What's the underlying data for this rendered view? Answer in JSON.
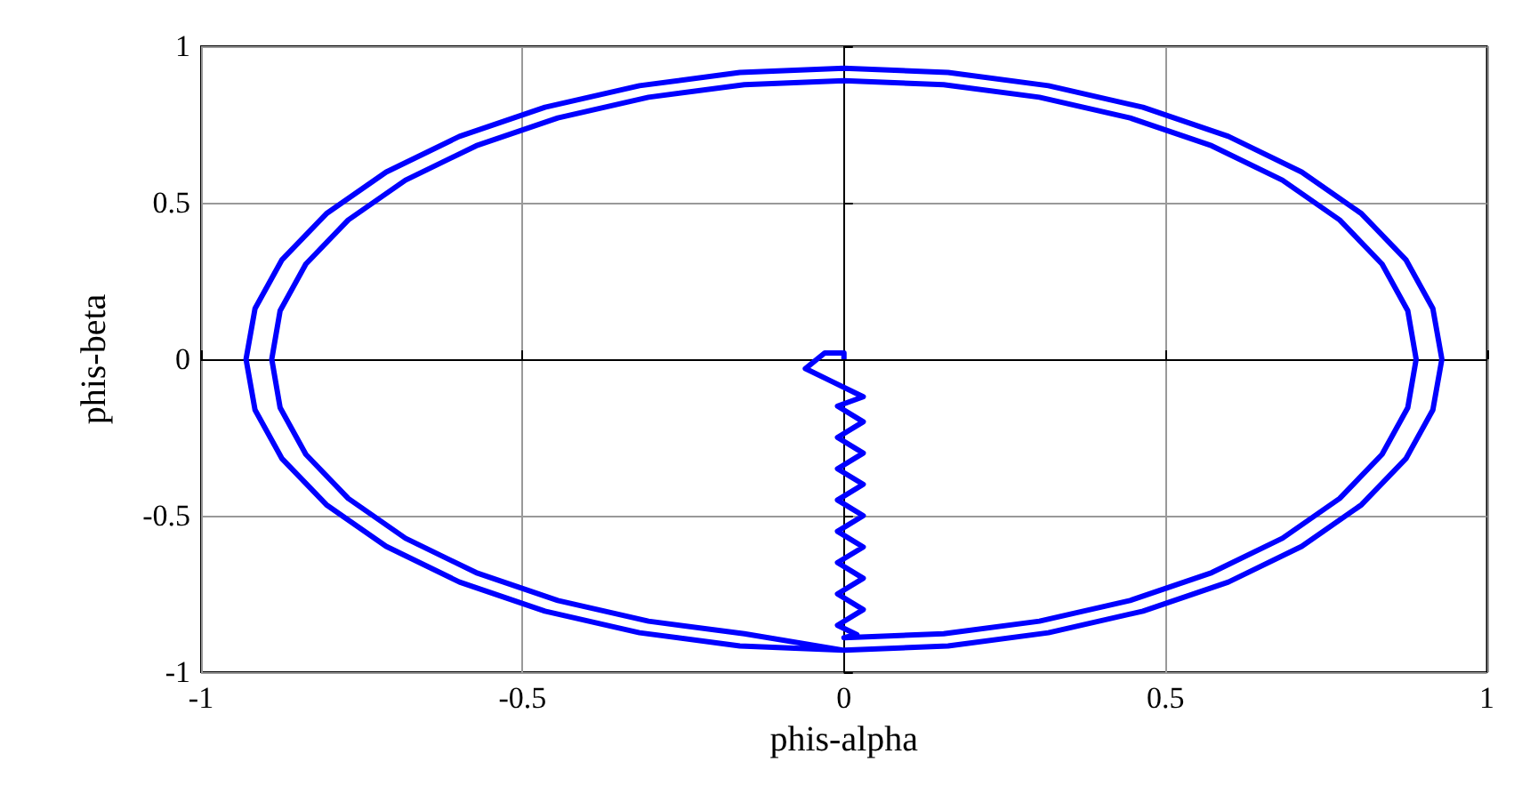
{
  "chart_data": {
    "type": "line",
    "xlabel": "phis-alpha",
    "ylabel": "phis-beta",
    "color": "#0000ff",
    "x": [
      0,
      0,
      -0.03,
      -0.06,
      -0.02,
      0.03,
      -0.01,
      0.03,
      -0.01,
      0.03,
      -0.01,
      0.03,
      -0.01,
      0.03,
      -0.01,
      0.03,
      -0.01,
      0.03,
      -0.01,
      0.03,
      -0.01,
      0.02,
      0,
      0.155,
      0.304,
      0.445,
      0.572,
      0.682,
      0.771,
      0.837,
      0.877,
      0.89,
      0.877,
      0.837,
      0.771,
      0.682,
      0.572,
      0.445,
      0.304,
      0.155,
      0,
      -0.155,
      -0.304,
      -0.445,
      -0.572,
      -0.682,
      -0.771,
      -0.837,
      -0.877,
      -0.89,
      -0.877,
      -0.837,
      -0.771,
      -0.682,
      -0.572,
      -0.445,
      -0.304,
      -0.155,
      0,
      0.162,
      0.318,
      0.465,
      0.598,
      0.712,
      0.805,
      0.874,
      0.916,
      0.93,
      0.916,
      0.874,
      0.805,
      0.712,
      0.598,
      0.465,
      0.318,
      0.162,
      0,
      -0.162,
      -0.318,
      -0.465,
      -0.598,
      -0.712,
      -0.805,
      -0.874,
      -0.916,
      -0.93,
      -0.916,
      -0.874,
      -0.805,
      -0.712,
      -0.598,
      -0.465,
      -0.318,
      -0.162,
      0
    ],
    "values": [
      0,
      0.02,
      0.02,
      -0.03,
      -0.07,
      -0.12,
      -0.15,
      -0.2,
      -0.25,
      -0.3,
      -0.35,
      -0.4,
      -0.45,
      -0.5,
      -0.55,
      -0.6,
      -0.65,
      -0.7,
      -0.75,
      -0.8,
      -0.85,
      -0.88,
      -0.89,
      -0.877,
      -0.837,
      -0.771,
      -0.682,
      -0.572,
      -0.445,
      -0.304,
      -0.155,
      0,
      0.155,
      0.304,
      0.445,
      0.572,
      0.682,
      0.771,
      0.837,
      0.877,
      0.89,
      0.877,
      0.837,
      0.771,
      0.682,
      0.572,
      0.445,
      0.304,
      0.155,
      0,
      -0.155,
      -0.304,
      -0.445,
      -0.572,
      -0.682,
      -0.771,
      -0.837,
      -0.877,
      -0.93,
      -0.916,
      -0.874,
      -0.805,
      -0.712,
      -0.598,
      -0.465,
      -0.318,
      -0.162,
      0,
      0.162,
      0.318,
      0.465,
      0.598,
      0.712,
      0.805,
      0.874,
      0.916,
      0.93,
      0.916,
      0.874,
      0.805,
      0.712,
      0.598,
      0.465,
      0.318,
      0.162,
      0,
      -0.162,
      -0.318,
      -0.465,
      -0.598,
      -0.712,
      -0.805,
      -0.874,
      -0.916,
      -0.93
    ],
    "xlim": [
      -1,
      1
    ],
    "ylim": [
      -1,
      1
    ],
    "xticks": [
      -1,
      -0.5,
      0,
      0.5,
      1
    ],
    "yticks": [
      -1,
      -0.5,
      0,
      0.5,
      1
    ],
    "grid": true
  }
}
